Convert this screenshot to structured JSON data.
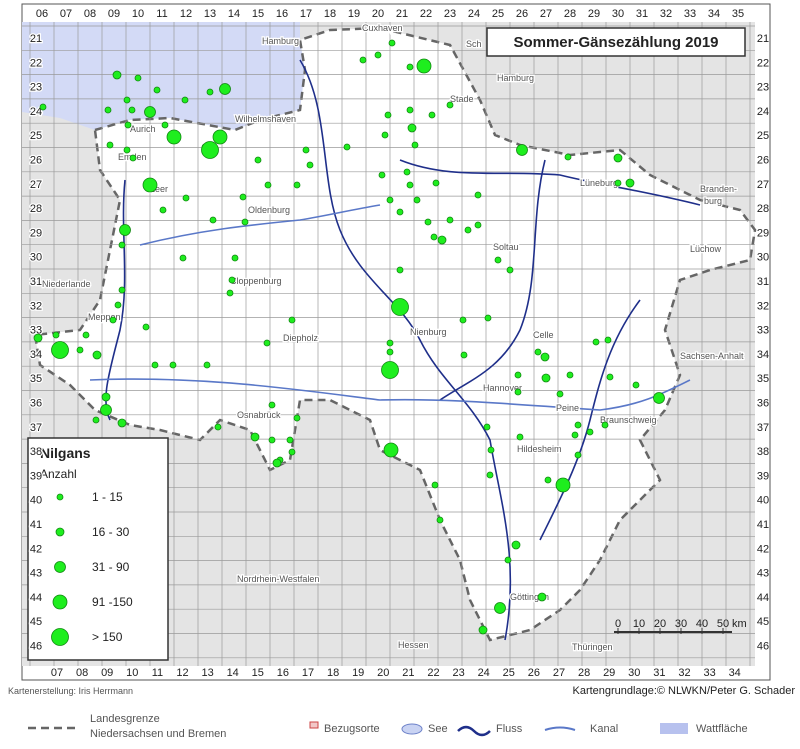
{
  "title": "Sommer-Gänsezählung 2019",
  "grid": {
    "top": [
      "06",
      "07",
      "08",
      "09",
      "10",
      "11",
      "12",
      "13",
      "14",
      "15",
      "16",
      "17",
      "18",
      "19",
      "20",
      "21",
      "22",
      "23",
      "24",
      "25",
      "26",
      "27",
      "28",
      "29",
      "30",
      "31",
      "32",
      "33",
      "34",
      "35"
    ],
    "bottom": [
      "07",
      "08",
      "09",
      "10",
      "11",
      "12",
      "13",
      "14",
      "15",
      "16",
      "17",
      "18",
      "19",
      "20",
      "21",
      "22",
      "23",
      "24",
      "25",
      "26",
      "27",
      "28",
      "29",
      "30",
      "31",
      "32",
      "33",
      "34"
    ],
    "left": [
      "21",
      "22",
      "23",
      "24",
      "25",
      "26",
      "27",
      "28",
      "29",
      "30",
      "31",
      "32",
      "33",
      "34",
      "35",
      "36",
      "37",
      "38",
      "39",
      "40",
      "41",
      "42",
      "43",
      "44",
      "45",
      "46"
    ],
    "right": [
      "21",
      "22",
      "23",
      "24",
      "25",
      "26",
      "27",
      "28",
      "29",
      "30",
      "31",
      "32",
      "33",
      "34",
      "35",
      "36",
      "37",
      "38",
      "39",
      "40",
      "41",
      "42",
      "43",
      "44",
      "45",
      "46"
    ]
  },
  "places": [
    "Cuxhaven",
    "Hamburg",
    "Sch",
    "Hamburg",
    "Stade",
    "Wilhelmshaven",
    "Aurich",
    "Emden",
    "Leer",
    "Oldenburg",
    "Lüneburg",
    "Branden-",
    "burg",
    "Lüchow",
    "Soltau",
    "Niederlande",
    "Cloppenburg",
    "Meppen",
    "Diepholz",
    "Nienburg",
    "Celle",
    "Sachsen-Anhalt",
    "Hannover",
    "Peine",
    "Braunschweig",
    "Osnabrück",
    "Hildesheim",
    "Nordrhein-Westfalen",
    "Göttingen",
    "Hessen",
    "Thüringen"
  ],
  "legend": {
    "species": "Nilgans",
    "unit": "Anzahl",
    "classes": [
      "1 - 15",
      "16 - 30",
      "31 - 90",
      "91 -150",
      "> 150"
    ]
  },
  "scale": {
    "labels": [
      "0",
      "10",
      "20",
      "30",
      "40",
      "50"
    ],
    "unit": "km"
  },
  "credits": {
    "author": "Kartenerstellung: Iris Herrmann",
    "source": "Kartengrundlage:© NLWKN/Peter G. Schader"
  },
  "key": {
    "border": [
      "Landesgrenze",
      "Niedersachsen und Bremen"
    ],
    "places": "Bezugsorte",
    "lake": "See",
    "river": "Fluss",
    "canal": "Kanal",
    "tidal": "Wattfläche"
  }
}
